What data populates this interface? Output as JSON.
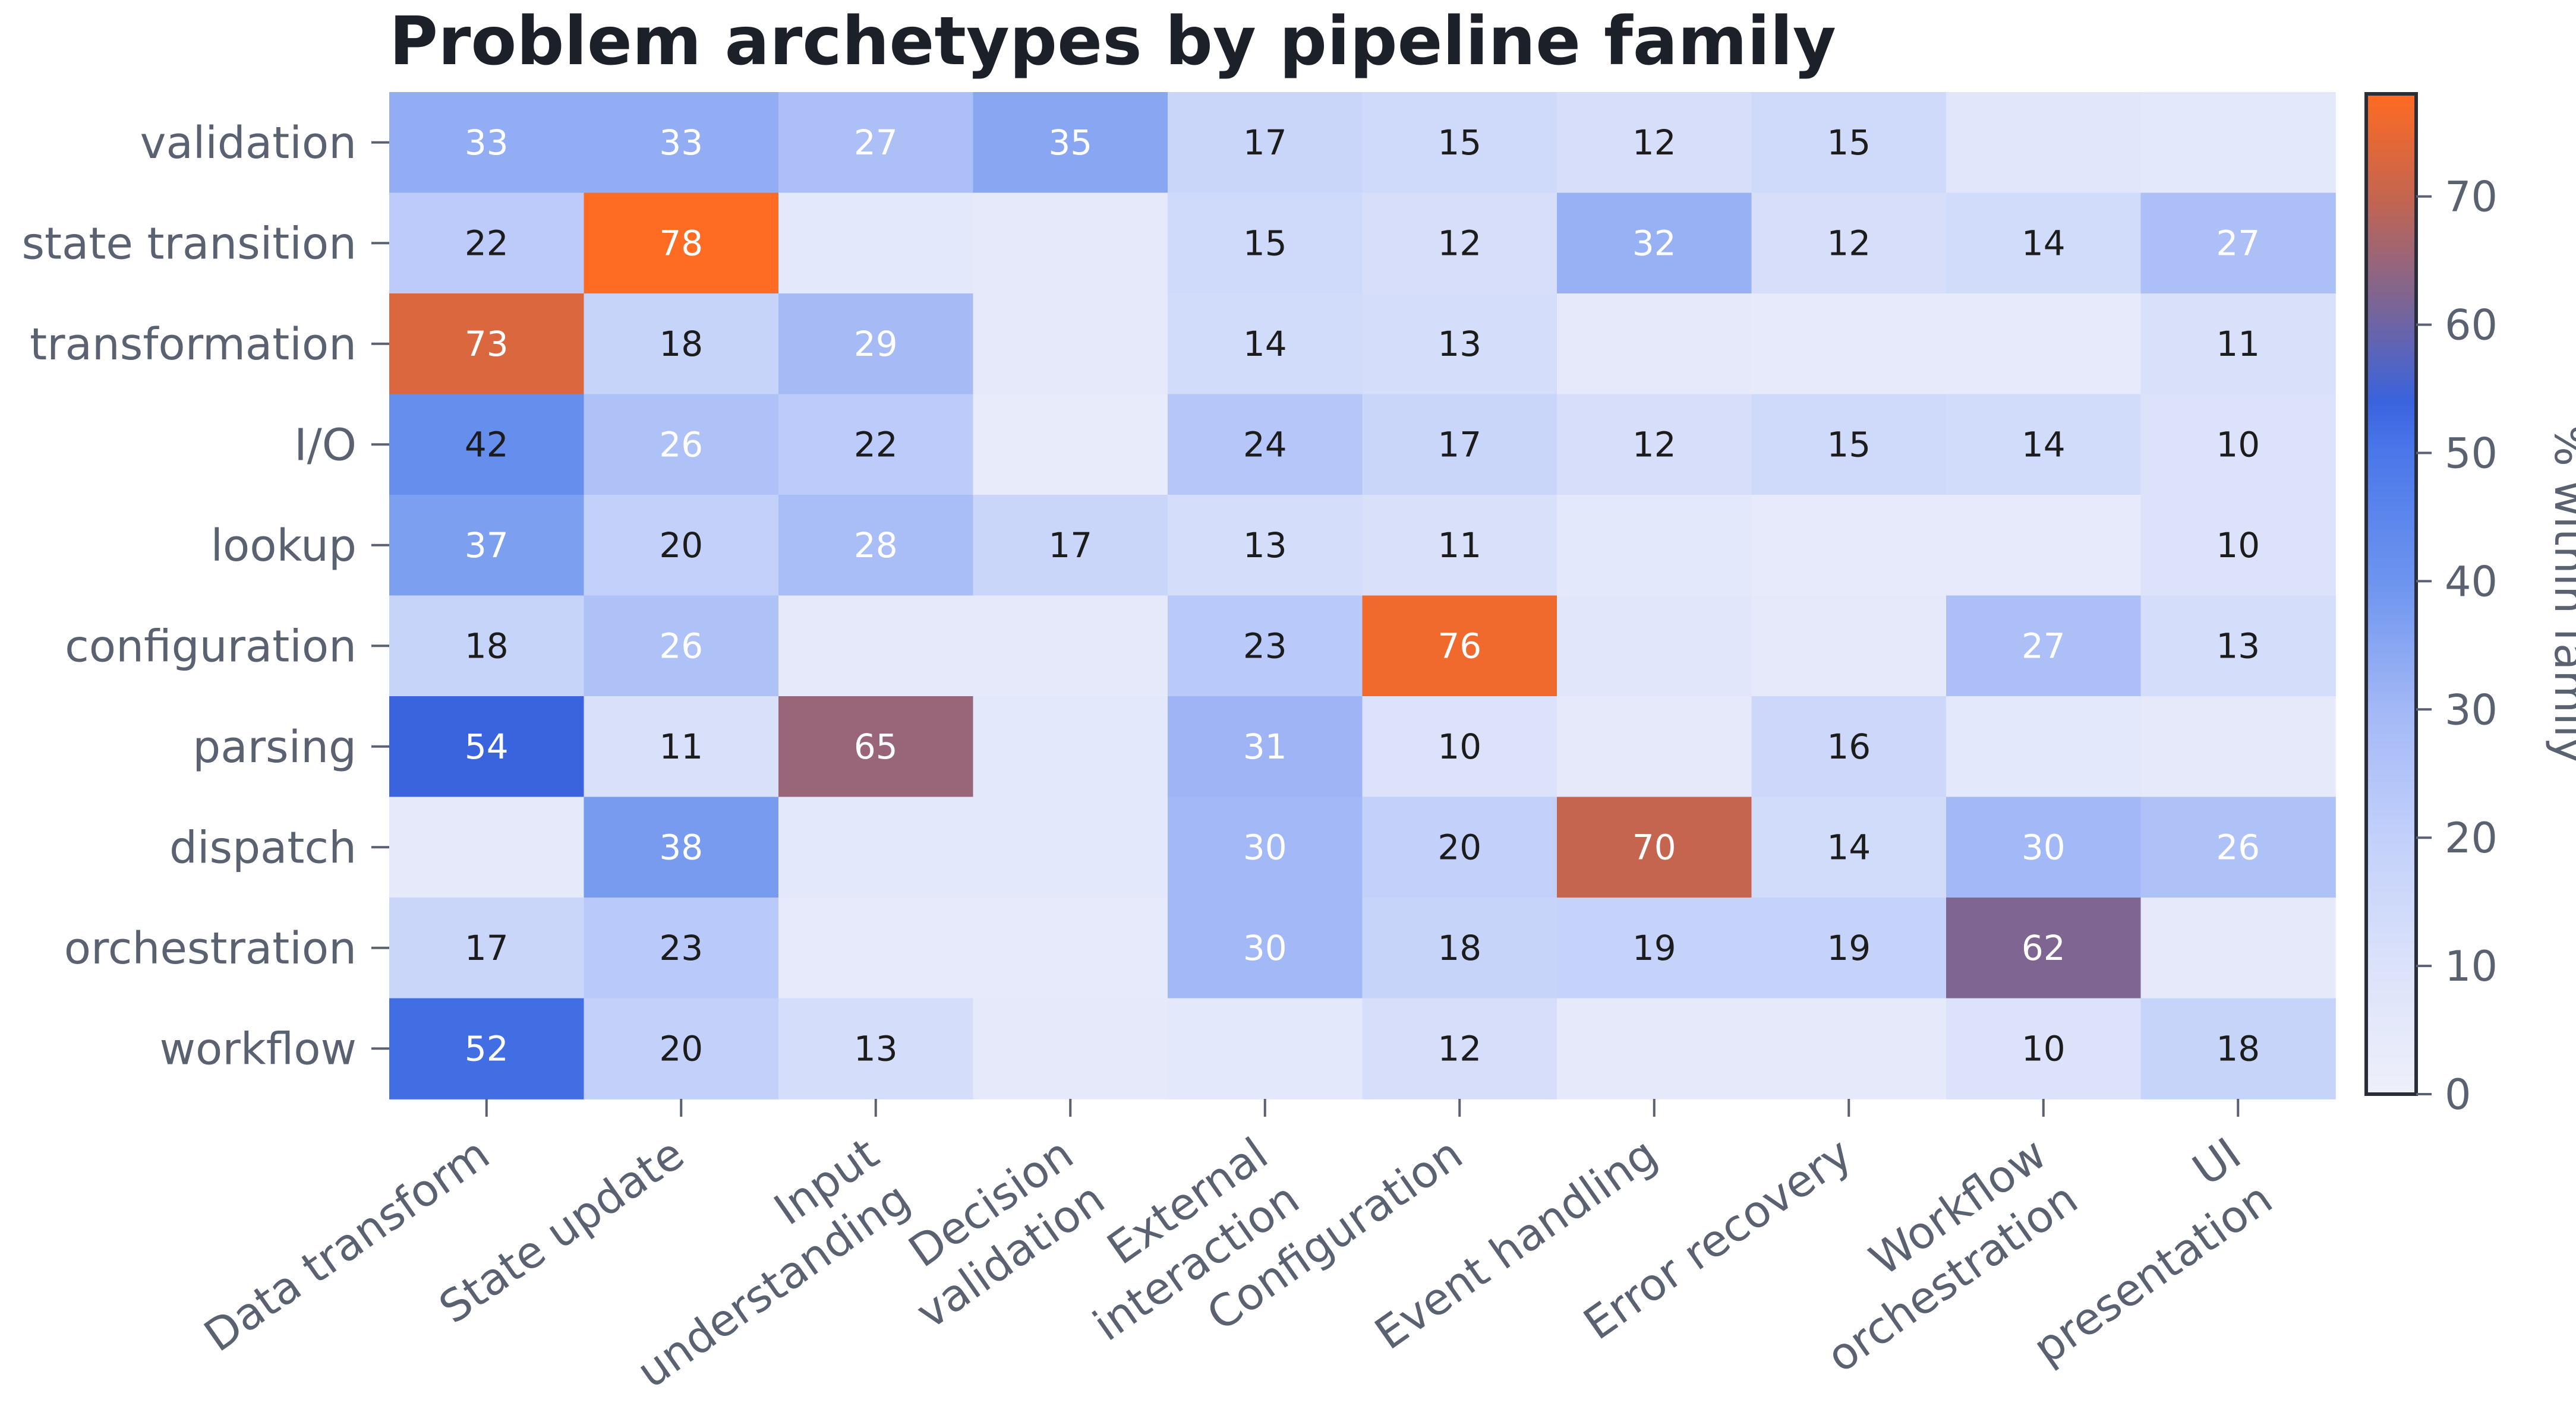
{
  "chart_data": {
    "type": "heatmap",
    "title": "Problem archetypes by pipeline family",
    "rows": [
      "validation",
      "state transition",
      "transformation",
      "I/O",
      "lookup",
      "configuration",
      "parsing",
      "dispatch",
      "orchestration",
      "workflow"
    ],
    "columns": [
      [
        "Data transform"
      ],
      [
        "State update"
      ],
      [
        "Input",
        "understanding"
      ],
      [
        "Decision",
        "validation"
      ],
      [
        "External",
        "interaction"
      ],
      [
        "Configuration"
      ],
      [
        "Event handling"
      ],
      [
        "Error recovery"
      ],
      [
        "Workflow",
        "orchestration"
      ],
      [
        "UI",
        "presentation"
      ]
    ],
    "values": [
      [
        33,
        33,
        27,
        35,
        17,
        15,
        12,
        15,
        7,
        6
      ],
      [
        22,
        78,
        6,
        5,
        15,
        12,
        32,
        12,
        14,
        27
      ],
      [
        73,
        18,
        29,
        5,
        14,
        13,
        5,
        4,
        4,
        11
      ],
      [
        42,
        26,
        22,
        3,
        24,
        17,
        12,
        15,
        14,
        10
      ],
      [
        37,
        20,
        28,
        17,
        13,
        11,
        6,
        4,
        4,
        10
      ],
      [
        18,
        26,
        5,
        5,
        23,
        76,
        7,
        5,
        27,
        13
      ],
      [
        54,
        11,
        65,
        6,
        31,
        10,
        5,
        16,
        6,
        5
      ],
      [
        5,
        38,
        6,
        6,
        30,
        20,
        70,
        14,
        30,
        26
      ],
      [
        17,
        23,
        4,
        4,
        30,
        18,
        19,
        19,
        62,
        5
      ],
      [
        52,
        20,
        13,
        5,
        6,
        12,
        5,
        5,
        10,
        18
      ]
    ],
    "label_min": 10,
    "colorbar": {
      "label": "% within family",
      "range": [
        0,
        78
      ],
      "ticks": [
        0,
        10,
        20,
        30,
        40,
        50,
        60,
        70
      ]
    },
    "colormap": {
      "stops": [
        {
          "v": 0,
          "color": "#eef0fa"
        },
        {
          "v": 10,
          "color": "#dbe2fa"
        },
        {
          "v": 20,
          "color": "#c2d0fa"
        },
        {
          "v": 30,
          "color": "#a3b8f6"
        },
        {
          "v": 40,
          "color": "#6d94ee"
        },
        {
          "v": 50,
          "color": "#4a78ea"
        },
        {
          "v": 54,
          "color": "#3a63de"
        },
        {
          "v": 62,
          "color": "#7e6592"
        },
        {
          "v": 70,
          "color": "#c5654f"
        },
        {
          "v": 78,
          "color": "#fe6b22"
        }
      ]
    },
    "text_colors": {
      "dark": "#1c1c1c",
      "light": "#ffffff"
    }
  }
}
